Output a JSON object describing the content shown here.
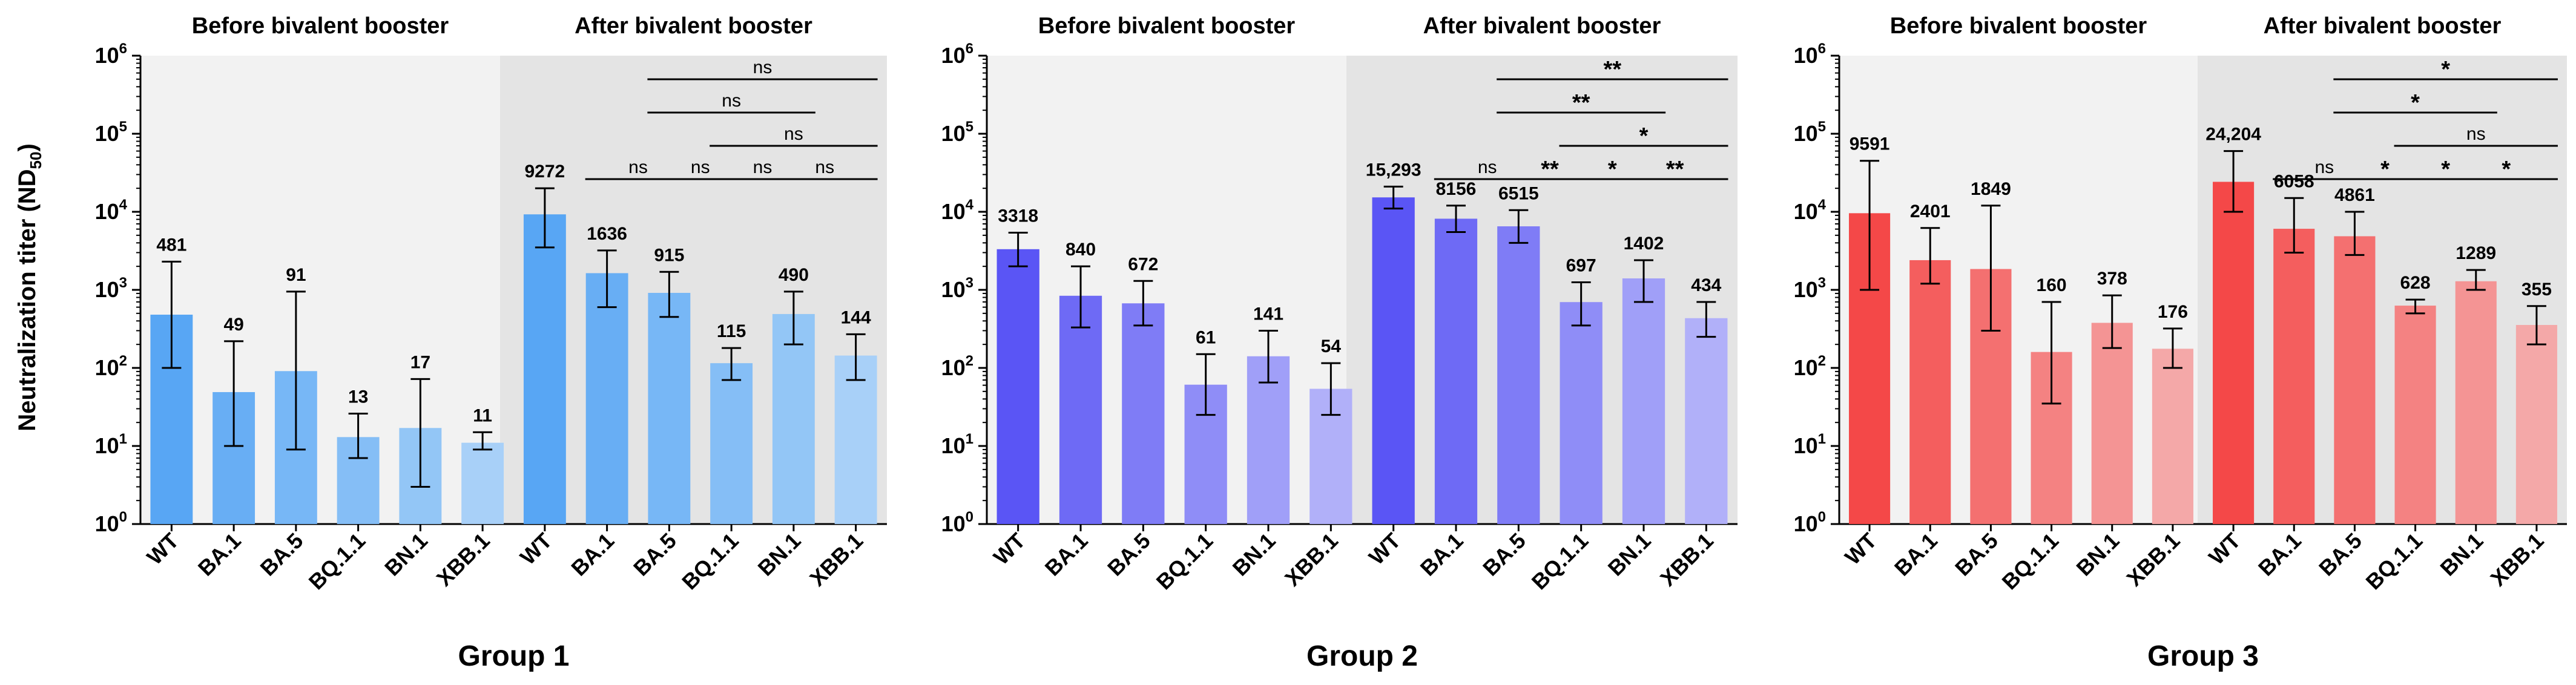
{
  "figure": {
    "ylabel": "Neutralization titer (ND",
    "ylabel_sub": "50",
    "ylabel_close": ")",
    "ytick_base": "10",
    "ytick_exponents": [
      "0",
      "1",
      "2",
      "3",
      "4",
      "5",
      "6"
    ],
    "section_before": "Before bivalent booster",
    "section_after": "After bivalent booster"
  },
  "chart_data": [
    {
      "type": "bar",
      "title": "Group 1",
      "yscale": "log",
      "ylim": [
        1,
        1000000
      ],
      "categories": [
        "WT",
        "BA.1",
        "BA.5",
        "BQ.1.1",
        "BN.1",
        "XBB.1",
        "WT",
        "BA.1",
        "BA.5",
        "BQ.1.1",
        "BN.1",
        "XBB.1"
      ],
      "values": [
        481,
        49,
        91,
        13,
        17,
        11,
        9272,
        1636,
        915,
        115,
        490,
        144
      ],
      "value_labels": [
        "481",
        "49",
        "91",
        "13",
        "17",
        "11",
        "9272",
        "1636",
        "915",
        "115",
        "490",
        "144"
      ],
      "error_low": [
        100,
        10,
        9,
        7,
        3,
        9,
        3500,
        600,
        450,
        70,
        200,
        70
      ],
      "error_high": [
        2300,
        220,
        950,
        26,
        72,
        15,
        20000,
        3200,
        1700,
        180,
        950,
        270
      ],
      "colors": [
        "#58a6f4",
        "#68aef4",
        "#77b7f6",
        "#85bef6",
        "#93c6f6",
        "#a8d0f8",
        "#58a6f4",
        "#68aef4",
        "#77b7f6",
        "#85bef6",
        "#93c6f6",
        "#a8d0f8"
      ],
      "significance": [
        {
          "from": 8,
          "to": 11,
          "label": "ns",
          "level": 3
        },
        {
          "from": 8,
          "to": 10,
          "label": "ns",
          "level": 2
        },
        {
          "from": 9,
          "to": 11,
          "label": "ns",
          "level": 1
        },
        {
          "from": 7,
          "to": 8,
          "label": "ns",
          "level": 0
        },
        {
          "from": 8,
          "to": 9,
          "label": "ns",
          "level": 0
        },
        {
          "from": 9,
          "to": 10,
          "label": "ns",
          "level": 0
        },
        {
          "from": 10,
          "to": 11,
          "label": "ns",
          "level": 0
        }
      ]
    },
    {
      "type": "bar",
      "title": "Group 2",
      "yscale": "log",
      "ylim": [
        1,
        1000000
      ],
      "categories": [
        "WT",
        "BA.1",
        "BA.5",
        "BQ.1.1",
        "BN.1",
        "XBB.1",
        "WT",
        "BA.1",
        "BA.5",
        "BQ.1.1",
        "BN.1",
        "XBB.1"
      ],
      "values": [
        3318,
        840,
        672,
        61,
        141,
        54,
        15293,
        8156,
        6515,
        697,
        1402,
        434
      ],
      "value_labels": [
        "3318",
        "840",
        "672",
        "61",
        "141",
        "54",
        "15,293",
        "8156",
        "6515",
        "697",
        "1402",
        "434"
      ],
      "error_low": [
        2000,
        330,
        350,
        25,
        65,
        25,
        11000,
        5500,
        4000,
        350,
        700,
        250
      ],
      "error_high": [
        5400,
        2000,
        1300,
        150,
        300,
        115,
        21000,
        12000,
        10500,
        1250,
        2400,
        700
      ],
      "colors": [
        "#5a55f5",
        "#6e6af5",
        "#7f7cf6",
        "#8f8df7",
        "#a09ff8",
        "#b1b0f9",
        "#5a55f5",
        "#6e6af5",
        "#7f7cf6",
        "#8f8df7",
        "#a09ff8",
        "#b1b0f9"
      ],
      "significance": [
        {
          "from": 8,
          "to": 11,
          "label": "**",
          "level": 3
        },
        {
          "from": 8,
          "to": 10,
          "label": "**",
          "level": 2
        },
        {
          "from": 9,
          "to": 11,
          "label": "*",
          "level": 1
        },
        {
          "from": 7,
          "to": 8,
          "label": "ns",
          "level": 0
        },
        {
          "from": 8,
          "to": 9,
          "label": "**",
          "level": 0
        },
        {
          "from": 9,
          "to": 10,
          "label": "*",
          "level": 0
        },
        {
          "from": 10,
          "to": 11,
          "label": "**",
          "level": 0
        }
      ]
    },
    {
      "type": "bar",
      "title": "Group 3",
      "yscale": "log",
      "ylim": [
        1,
        1000000
      ],
      "categories": [
        "WT",
        "BA.1",
        "BA.5",
        "BQ.1.1",
        "BN.1",
        "XBB.1",
        "WT",
        "BA.1",
        "BA.5",
        "BQ.1.1",
        "BN.1",
        "XBB.1"
      ],
      "values": [
        9591,
        2401,
        1849,
        160,
        378,
        176,
        24204,
        6058,
        4861,
        628,
        1289,
        355
      ],
      "value_labels": [
        "9591",
        "2401",
        "1849",
        "160",
        "378",
        "176",
        "24,204",
        "6058",
        "4861",
        "628",
        "1289",
        "355"
      ],
      "error_low": [
        1000,
        1200,
        300,
        35,
        180,
        100,
        10000,
        3000,
        2800,
        500,
        1000,
        200
      ],
      "error_high": [
        45000,
        6200,
        12000,
        700,
        850,
        320,
        60000,
        15000,
        10000,
        750,
        1800,
        620
      ],
      "colors": [
        "#f44848",
        "#f45e5e",
        "#f47070",
        "#f48282",
        "#f49494",
        "#f4a8a8",
        "#f44848",
        "#f45e5e",
        "#f47070",
        "#f48282",
        "#f49494",
        "#f4a8a8"
      ],
      "significance": [
        {
          "from": 8,
          "to": 11,
          "label": "*",
          "level": 3
        },
        {
          "from": 8,
          "to": 10,
          "label": "*",
          "level": 2
        },
        {
          "from": 9,
          "to": 11,
          "label": "ns",
          "level": 1
        },
        {
          "from": 7,
          "to": 8,
          "label": "ns",
          "level": 0
        },
        {
          "from": 8,
          "to": 9,
          "label": "*",
          "level": 0
        },
        {
          "from": 9,
          "to": 10,
          "label": "*",
          "level": 0
        },
        {
          "from": 10,
          "to": 11,
          "label": "*",
          "level": 0
        }
      ]
    }
  ]
}
